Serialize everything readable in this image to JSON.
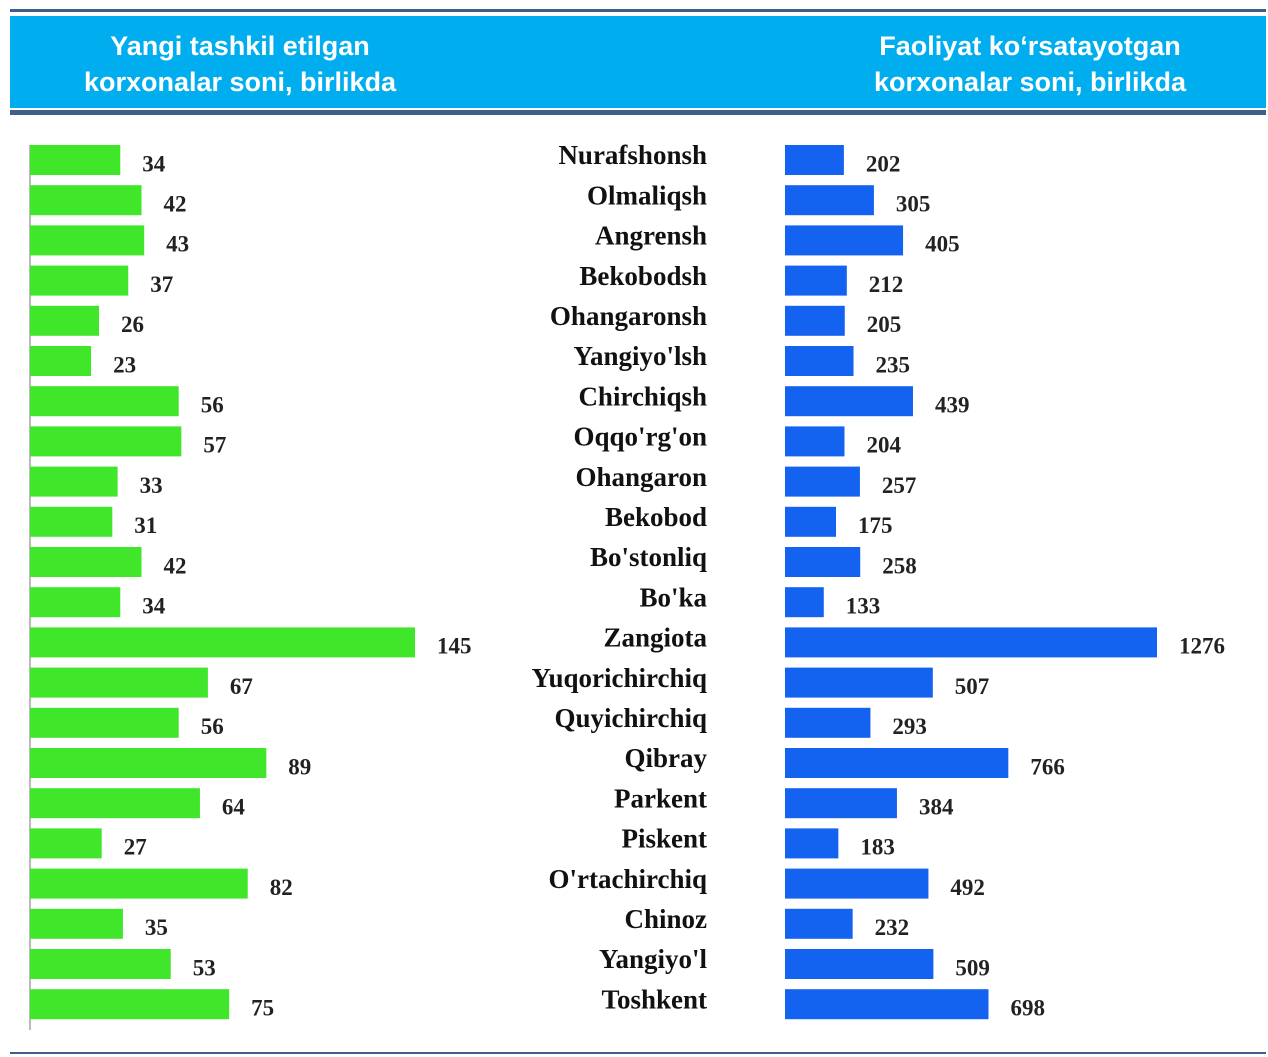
{
  "chart_data": {
    "type": "bar",
    "orientation": "horizontal",
    "categories": [
      "Nurafshonsh",
      "Olmaliqsh",
      "Angrensh",
      "Bekobodsh",
      "Ohangaronsh",
      "Yangiyo'lsh",
      "Chirchiqsh",
      "Oqqo'rg'on",
      "Ohangaron",
      "Bekobod",
      "Bo'stonliq",
      "Bo'ka",
      "Zangiota",
      "Yuqorichirchiq",
      "Quyichirchiq",
      "Qibray",
      "Parkent",
      "Piskent",
      "O'rtachirchiq",
      "Chinoz",
      "Yangiyo'l",
      "Toshkent"
    ],
    "series": [
      {
        "name": "Yangi tashkil etilgan korxonalar soni, birlikda",
        "color": "#3fe62a",
        "values": [
          34,
          42,
          43,
          37,
          26,
          23,
          56,
          57,
          33,
          31,
          42,
          34,
          145,
          67,
          56,
          89,
          64,
          27,
          82,
          35,
          53,
          75
        ]
      },
      {
        "name": "Faoliyat ko‘rsatayotgan korxonalar soni, birlikda",
        "color": "#1462f0",
        "values": [
          202,
          305,
          405,
          212,
          205,
          235,
          439,
          204,
          257,
          175,
          258,
          133,
          1276,
          507,
          293,
          766,
          384,
          183,
          492,
          232,
          509,
          698
        ]
      }
    ]
  }
}
